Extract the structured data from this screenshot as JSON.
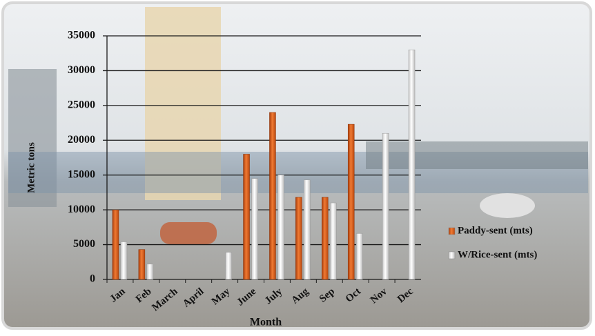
{
  "chart_data": {
    "type": "bar",
    "categories": [
      "Jan",
      "Feb",
      "March",
      "April",
      "May",
      "June",
      "July",
      "Aug",
      "Sep",
      "Oct",
      "Nov",
      "Dec"
    ],
    "series": [
      {
        "name": "Paddy-sent (mts)",
        "color": "#d2571c",
        "values": [
          10000,
          4300,
          0,
          0,
          0,
          18000,
          24000,
          11800,
          11800,
          22300,
          0,
          0
        ]
      },
      {
        "name": "W/Rice-sent (mts)",
        "color": "#f2f2f2",
        "values": [
          5400,
          2200,
          0,
          0,
          3900,
          14500,
          15000,
          14300,
          11000,
          6600,
          21000,
          33000
        ]
      }
    ],
    "ylim": [
      0,
      35000
    ],
    "yticks": [
      0,
      5000,
      10000,
      15000,
      20000,
      25000,
      30000,
      35000
    ],
    "y_label": "Metric tons",
    "x_label": "Month",
    "grid": true,
    "legend": "right"
  }
}
